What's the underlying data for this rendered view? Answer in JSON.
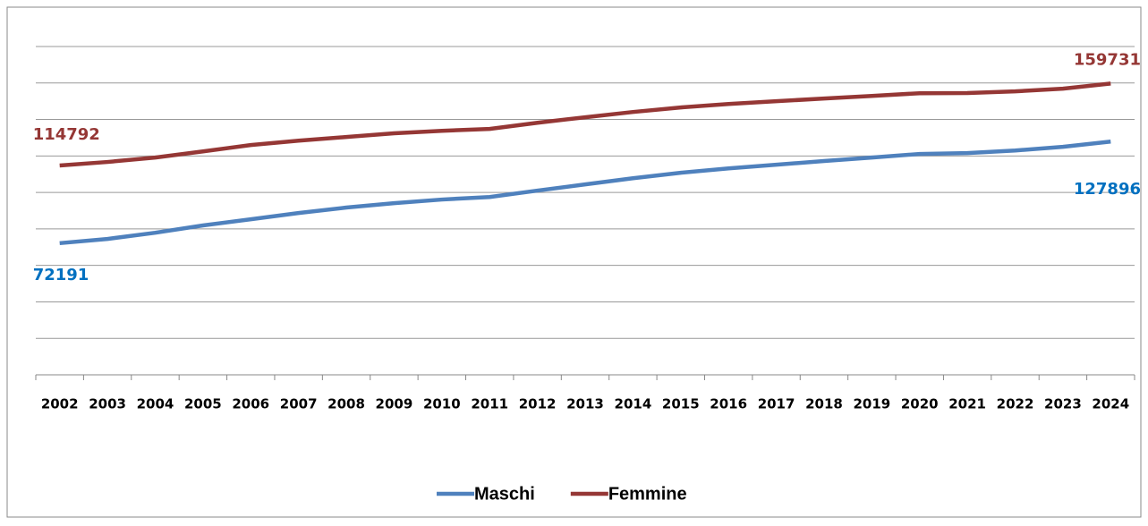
{
  "chart_data": {
    "type": "line",
    "categories": [
      "2002",
      "2003",
      "2004",
      "2005",
      "2006",
      "2007",
      "2008",
      "2009",
      "2010",
      "2011",
      "2012",
      "2013",
      "2014",
      "2015",
      "2016",
      "2017",
      "2018",
      "2019",
      "2020",
      "2021",
      "2022",
      "2023",
      "2024"
    ],
    "series": [
      {
        "name": "Maschi",
        "color": "#4f81bd",
        "label_color": "#0070c0",
        "values": [
          72191,
          74500,
          77900,
          81900,
          85300,
          88700,
          91700,
          94100,
          96100,
          97500,
          101000,
          104400,
          107800,
          110800,
          113200,
          115200,
          117200,
          119100,
          121100,
          121600,
          123000,
          125000,
          127896
        ]
      },
      {
        "name": "Femmine",
        "color": "#953735",
        "label_color": "#953735",
        "values": [
          114792,
          116700,
          119100,
          122500,
          126000,
          128400,
          130400,
          132400,
          133800,
          134800,
          138200,
          141200,
          144100,
          146600,
          148500,
          150000,
          151500,
          152900,
          154400,
          154500,
          155400,
          156900,
          159731
        ]
      }
    ],
    "ylim": [
      0,
      180000
    ],
    "yticks": [
      0,
      20000,
      40000,
      60000,
      80000,
      100000,
      120000,
      140000,
      160000,
      180000
    ],
    "grid": true,
    "legend": "bottom"
  }
}
